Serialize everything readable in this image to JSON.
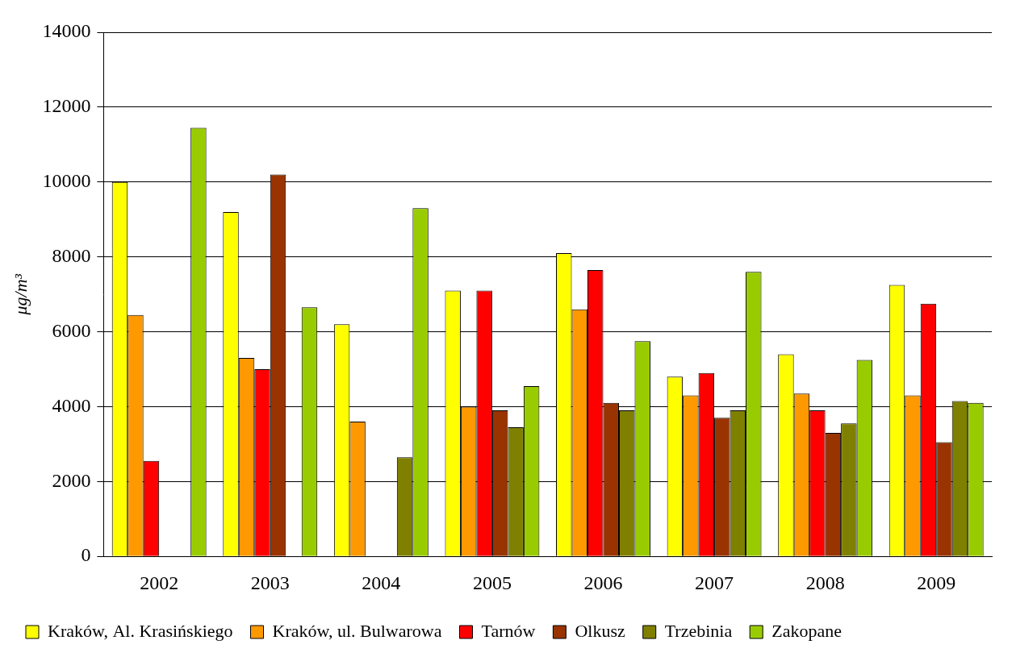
{
  "chart_data": {
    "type": "bar",
    "y_label": "μg/m³",
    "categories": [
      "2002",
      "2003",
      "2004",
      "2005",
      "2006",
      "2007",
      "2008",
      "2009"
    ],
    "series": [
      {
        "name": "Kraków, Al. Krasińskiego",
        "color": "#ffff00",
        "values": [
          10000,
          9200,
          6200,
          7100,
          8100,
          4800,
          5400,
          7250
        ]
      },
      {
        "name": "Kraków, ul. Bulwarowa",
        "color": "#ff9900",
        "values": [
          6450,
          5300,
          3600,
          4000,
          6600,
          4300,
          4350,
          4300
        ]
      },
      {
        "name": "Tarnów",
        "color": "#ff0000",
        "values": [
          2550,
          5000,
          null,
          7100,
          7650,
          4900,
          3900,
          6750
        ]
      },
      {
        "name": "Olkusz",
        "color": "#993300",
        "values": [
          null,
          10200,
          null,
          3900,
          4100,
          3700,
          3300,
          3050
        ]
      },
      {
        "name": "Trzebinia",
        "color": "#808000",
        "values": [
          null,
          null,
          2650,
          3450,
          3900,
          3900,
          3550,
          4150
        ]
      },
      {
        "name": "Zakopane",
        "color": "#99cc00",
        "values": [
          11450,
          6650,
          9300,
          4550,
          5750,
          7600,
          5250,
          4100
        ]
      }
    ],
    "ylim": [
      0,
      14000
    ],
    "yticks": [
      0,
      2000,
      4000,
      6000,
      8000,
      10000,
      12000,
      14000
    ],
    "grid": true,
    "legend": "bottom"
  }
}
